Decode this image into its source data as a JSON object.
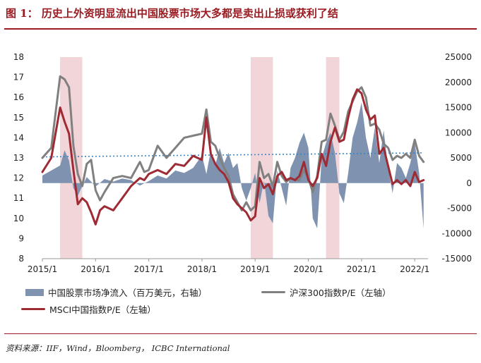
{
  "title": "图 1：  历史上外资明显流出中国股票市场大多都是卖出止损或获利了结",
  "source": "资料来源：IIF，Wind，Bloomberg， ICBC International",
  "colors": {
    "accent": "#9a1b21",
    "flows": "#7f93b0",
    "csi300": "#808080",
    "msci": "#9e2a34",
    "trend": "#3a86c8",
    "highlight": "#f2d5d8"
  },
  "legend": {
    "flows": "中国股票市场净流入（百万美元，右轴）",
    "csi300": "沪深300指数P/E（左轴）",
    "msci": "MSCI中国指数P/E（左轴）"
  },
  "chart_data": {
    "type": "line",
    "x_ticks": [
      "2015/1",
      "2016/1",
      "2017/1",
      "2018/1",
      "2019/1",
      "2020/1",
      "2021/1",
      "2022/1"
    ],
    "y_left": {
      "range": [
        8,
        18
      ],
      "ticks": [
        8,
        9,
        10,
        11,
        12,
        13,
        14,
        15,
        16,
        17,
        18
      ]
    },
    "y_right": {
      "range": [
        -15000,
        25000
      ],
      "ticks": [
        -15000,
        -10000,
        -5000,
        0,
        5000,
        10000,
        15000,
        20000,
        25000
      ]
    },
    "highlight_periods": [
      [
        "2015/5",
        "2015/10"
      ],
      [
        "2018/12",
        "2019/5"
      ],
      [
        "2020/5",
        "2020/8"
      ]
    ],
    "trend_line": {
      "axis": "left",
      "from": [
        "2015/1",
        13.05
      ],
      "to": [
        "2022/3",
        13.25
      ]
    },
    "series": [
      {
        "name": "中国股票市场净流入（百万美元，右轴）",
        "type": "area",
        "axis": "right",
        "points": [
          [
            "2015/1",
            1500
          ],
          [
            "2015/3",
            2500
          ],
          [
            "2015/5",
            3500
          ],
          [
            "2015/6",
            6500
          ],
          [
            "2015/7",
            4500
          ],
          [
            "2015/8",
            -1000
          ],
          [
            "2015/9",
            -2500
          ],
          [
            "2015/10",
            -600
          ],
          [
            "2015/11",
            1200
          ],
          [
            "2015/12",
            300
          ],
          [
            "2016/1",
            -700
          ],
          [
            "2016/3",
            800
          ],
          [
            "2016/5",
            300
          ],
          [
            "2016/7",
            900
          ],
          [
            "2016/9",
            600
          ],
          [
            "2016/11",
            -500
          ],
          [
            "2017/1",
            400
          ],
          [
            "2017/3",
            1500
          ],
          [
            "2017/5",
            900
          ],
          [
            "2017/7",
            2500
          ],
          [
            "2017/9",
            2000
          ],
          [
            "2017/11",
            3000
          ],
          [
            "2018/1",
            5500
          ],
          [
            "2018/2",
            1800
          ],
          [
            "2018/3",
            6500
          ],
          [
            "2018/4",
            3500
          ],
          [
            "2018/5",
            7000
          ],
          [
            "2018/6",
            4000
          ],
          [
            "2018/7",
            6000
          ],
          [
            "2018/8",
            3000
          ],
          [
            "2018/9",
            4000
          ],
          [
            "2018/10",
            -1000
          ],
          [
            "2018/11",
            -3500
          ],
          [
            "2018/12",
            -1000
          ],
          [
            "2019/1",
            2000
          ],
          [
            "2019/2",
            -4000
          ],
          [
            "2019/3",
            500
          ],
          [
            "2019/4",
            -6500
          ],
          [
            "2019/5",
            -8000
          ],
          [
            "2019/6",
            2500
          ],
          [
            "2019/7",
            -1000
          ],
          [
            "2019/8",
            -4500
          ],
          [
            "2019/9",
            3000
          ],
          [
            "2019/10",
            5000
          ],
          [
            "2019/11",
            8000
          ],
          [
            "2019/12",
            10000
          ],
          [
            "2020/1",
            7000
          ],
          [
            "2020/2",
            -7000
          ],
          [
            "2020/3",
            -9000
          ],
          [
            "2020/4",
            5000
          ],
          [
            "2020/5",
            8000
          ],
          [
            "2020/6",
            10000
          ],
          [
            "2020/7",
            6000
          ],
          [
            "2020/8",
            -2000
          ],
          [
            "2020/9",
            -4000
          ],
          [
            "2020/10",
            2000
          ],
          [
            "2020/11",
            9000
          ],
          [
            "2020/12",
            12000
          ],
          [
            "2021/1",
            16000
          ],
          [
            "2021/2",
            9000
          ],
          [
            "2021/3",
            5000
          ],
          [
            "2021/4",
            11000
          ],
          [
            "2021/5",
            4000
          ],
          [
            "2021/6",
            10500
          ],
          [
            "2021/7",
            3000
          ],
          [
            "2021/8",
            -2000
          ],
          [
            "2021/9",
            4000
          ],
          [
            "2021/10",
            3000
          ],
          [
            "2021/11",
            1000
          ],
          [
            "2021/12",
            4000
          ],
          [
            "2022/1",
            8000
          ],
          [
            "2022/2",
            2000
          ],
          [
            "2022/3",
            -9000
          ]
        ]
      },
      {
        "name": "沪深300指数P/E（左轴）",
        "type": "line",
        "axis": "left",
        "points": [
          [
            "2015/1",
            13.0
          ],
          [
            "2015/3",
            13.5
          ],
          [
            "2015/5",
            17.05
          ],
          [
            "2015/6",
            16.9
          ],
          [
            "2015/7",
            16.5
          ],
          [
            "2015/8",
            13.6
          ],
          [
            "2015/9",
            12.2
          ],
          [
            "2015/10",
            11.6
          ],
          [
            "2015/11",
            12.7
          ],
          [
            "2015/12",
            12.9
          ],
          [
            "2016/1",
            11.4
          ],
          [
            "2016/2",
            10.9
          ],
          [
            "2016/3",
            11.3
          ],
          [
            "2016/5",
            12.0
          ],
          [
            "2016/7",
            12.1
          ],
          [
            "2016/9",
            12.0
          ],
          [
            "2016/11",
            12.8
          ],
          [
            "2016/12",
            12.3
          ],
          [
            "2017/1",
            12.4
          ],
          [
            "2017/3",
            13.6
          ],
          [
            "2017/5",
            13.0
          ],
          [
            "2017/7",
            13.5
          ],
          [
            "2017/9",
            14.0
          ],
          [
            "2017/11",
            14.1
          ],
          [
            "2018/1",
            14.2
          ],
          [
            "2018/2",
            15.4
          ],
          [
            "2018/3",
            13.8
          ],
          [
            "2018/4",
            13.6
          ],
          [
            "2018/5",
            13.0
          ],
          [
            "2018/6",
            12.5
          ],
          [
            "2018/7",
            12.1
          ],
          [
            "2018/8",
            11.2
          ],
          [
            "2018/9",
            10.8
          ],
          [
            "2018/10",
            10.4
          ],
          [
            "2018/11",
            10.8
          ],
          [
            "2018/12",
            10.4
          ],
          [
            "2019/1",
            10.6
          ],
          [
            "2019/2",
            12.8
          ],
          [
            "2019/3",
            12.0
          ],
          [
            "2019/4",
            12.2
          ],
          [
            "2019/5",
            11.6
          ],
          [
            "2019/6",
            12.8
          ],
          [
            "2019/7",
            12.1
          ],
          [
            "2019/8",
            11.8
          ],
          [
            "2019/9",
            12.0
          ],
          [
            "2019/10",
            11.9
          ],
          [
            "2019/11",
            11.9
          ],
          [
            "2019/12",
            12.4
          ],
          [
            "2020/1",
            12.0
          ],
          [
            "2020/2",
            11.3
          ],
          [
            "2020/3",
            12.1
          ],
          [
            "2020/4",
            13.8
          ],
          [
            "2020/5",
            13.9
          ],
          [
            "2020/6",
            15.2
          ],
          [
            "2020/7",
            14.6
          ],
          [
            "2020/8",
            13.9
          ],
          [
            "2020/9",
            14.3
          ],
          [
            "2020/10",
            15.3
          ],
          [
            "2020/11",
            15.8
          ],
          [
            "2020/12",
            16.3
          ],
          [
            "2021/1",
            16.5
          ],
          [
            "2021/2",
            16.0
          ],
          [
            "2021/3",
            14.6
          ],
          [
            "2021/4",
            14.7
          ],
          [
            "2021/5",
            14.4
          ],
          [
            "2021/6",
            13.7
          ],
          [
            "2021/7",
            13.5
          ],
          [
            "2021/8",
            12.9
          ],
          [
            "2021/9",
            13.1
          ],
          [
            "2021/10",
            13.0
          ],
          [
            "2021/11",
            13.2
          ],
          [
            "2021/12",
            13.0
          ],
          [
            "2022/1",
            13.9
          ],
          [
            "2022/2",
            13.1
          ],
          [
            "2022/3",
            12.8
          ]
        ]
      },
      {
        "name": "MSCI中国指数P/E（左轴）",
        "type": "line",
        "axis": "left",
        "points": [
          [
            "2015/1",
            12.3
          ],
          [
            "2015/3",
            13.0
          ],
          [
            "2015/5",
            15.5
          ],
          [
            "2015/6",
            14.8
          ],
          [
            "2015/7",
            14.2
          ],
          [
            "2015/8",
            12.4
          ],
          [
            "2015/9",
            10.7
          ],
          [
            "2015/10",
            11.0
          ],
          [
            "2015/11",
            10.8
          ],
          [
            "2015/12",
            10.3
          ],
          [
            "2016/1",
            9.7
          ],
          [
            "2016/2",
            10.4
          ],
          [
            "2016/3",
            10.6
          ],
          [
            "2016/5",
            10.4
          ],
          [
            "2016/7",
            11.0
          ],
          [
            "2016/9",
            11.6
          ],
          [
            "2016/11",
            12.0
          ],
          [
            "2016/12",
            11.9
          ],
          [
            "2017/1",
            12.2
          ],
          [
            "2017/3",
            12.4
          ],
          [
            "2017/5",
            12.2
          ],
          [
            "2017/7",
            12.7
          ],
          [
            "2017/9",
            12.6
          ],
          [
            "2017/11",
            13.1
          ],
          [
            "2018/1",
            12.9
          ],
          [
            "2018/2",
            15.0
          ],
          [
            "2018/3",
            13.2
          ],
          [
            "2018/4",
            12.7
          ],
          [
            "2018/5",
            12.4
          ],
          [
            "2018/6",
            12.2
          ],
          [
            "2018/7",
            11.8
          ],
          [
            "2018/8",
            11.0
          ],
          [
            "2018/9",
            10.7
          ],
          [
            "2018/10",
            10.5
          ],
          [
            "2018/11",
            10.3
          ],
          [
            "2018/12",
            9.9
          ],
          [
            "2019/1",
            10.1
          ],
          [
            "2019/2",
            12.0
          ],
          [
            "2019/3",
            11.5
          ],
          [
            "2019/4",
            11.7
          ],
          [
            "2019/5",
            11.2
          ],
          [
            "2019/6",
            12.1
          ],
          [
            "2019/7",
            12.3
          ],
          [
            "2019/8",
            11.9
          ],
          [
            "2019/9",
            12.0
          ],
          [
            "2019/10",
            11.9
          ],
          [
            "2019/11",
            12.1
          ],
          [
            "2019/12",
            12.8
          ],
          [
            "2020/1",
            11.9
          ],
          [
            "2020/2",
            11.6
          ],
          [
            "2020/3",
            12.0
          ],
          [
            "2020/4",
            13.2
          ],
          [
            "2020/5",
            12.6
          ],
          [
            "2020/6",
            13.8
          ],
          [
            "2020/7",
            14.5
          ],
          [
            "2020/8",
            13.8
          ],
          [
            "2020/9",
            13.9
          ],
          [
            "2020/10",
            15.0
          ],
          [
            "2020/11",
            15.9
          ],
          [
            "2020/12",
            16.4
          ],
          [
            "2021/1",
            16.2
          ],
          [
            "2021/2",
            15.4
          ],
          [
            "2021/3",
            14.9
          ],
          [
            "2021/4",
            15.1
          ],
          [
            "2021/5",
            13.2
          ],
          [
            "2021/6",
            13.5
          ],
          [
            "2021/7",
            12.6
          ],
          [
            "2021/8",
            11.7
          ],
          [
            "2021/9",
            11.9
          ],
          [
            "2021/10",
            11.7
          ],
          [
            "2021/11",
            11.9
          ],
          [
            "2021/12",
            11.6
          ],
          [
            "2022/1",
            12.3
          ],
          [
            "2022/2",
            11.8
          ],
          [
            "2022/3",
            11.9
          ]
        ]
      }
    ]
  }
}
